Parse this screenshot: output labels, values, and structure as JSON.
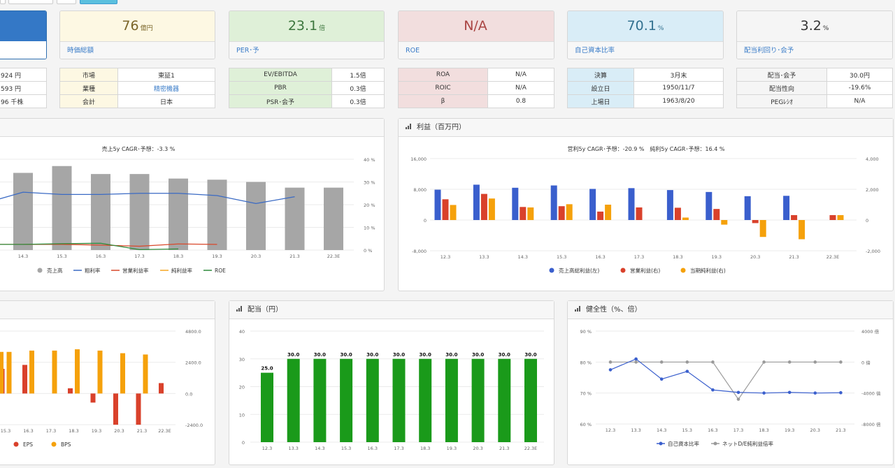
{
  "cards": [
    {
      "value": "76",
      "unit": "億円",
      "label": "時価総額"
    },
    {
      "value": "23.1",
      "unit": "倍",
      "label": "PER･予"
    },
    {
      "value": "N/A",
      "unit": "",
      "label": "ROE"
    },
    {
      "value": "70.1",
      "unit": "%",
      "label": "自己資本比率"
    },
    {
      "value": "3.2",
      "unit": "%",
      "label": "配当利回り･会予"
    }
  ],
  "left_partial_table": [
    "924 円",
    "593 円",
    "96 千株"
  ],
  "tables": [
    {
      "rows": [
        [
          "市場",
          "東証1"
        ],
        [
          "業種",
          "精密機器"
        ],
        [
          "会計",
          "日本"
        ]
      ]
    },
    {
      "rows": [
        [
          "EV/EBITDA",
          "1.5倍"
        ],
        [
          "PBR",
          "0.3倍"
        ],
        [
          "PSR･会予",
          "0.3倍"
        ]
      ]
    },
    {
      "rows": [
        [
          "ROA",
          "N/A"
        ],
        [
          "ROIC",
          "N/A"
        ],
        [
          "β",
          "0.8"
        ]
      ]
    },
    {
      "rows": [
        [
          "決算",
          "3月末"
        ],
        [
          "設立日",
          "1950/11/7"
        ],
        [
          "上場日",
          "1963/8/20"
        ]
      ]
    },
    {
      "rows": [
        [
          "配当･会予",
          "30.0円"
        ],
        [
          "配当性向",
          "-19.6%"
        ],
        [
          "PEGﾚｼｵ",
          "N/A"
        ]
      ]
    }
  ],
  "panels": {
    "profit_title": "利益（百万円）",
    "dividend_title": "配当（円）",
    "health_title": "健全性（%、倍）"
  },
  "chart_data": [
    {
      "type": "bar",
      "title": "売上5y CAGR･予想：-3.3 %",
      "categories": [
        "14.3",
        "15.3",
        "16.3",
        "17.3",
        "18.3",
        "19.3",
        "20.3",
        "21.3",
        "22.3E"
      ],
      "y2ticks": [
        "40 %",
        "30 %",
        "20 %",
        "10 %",
        "0 %"
      ],
      "y2lim": [
        0,
        40
      ],
      "series": [
        {
          "name": "売上高",
          "kind": "bar",
          "color": "#a6a6a6",
          "values": [
            34,
            37,
            33.5,
            33.5,
            31.5,
            31,
            30,
            27.5,
            27.5
          ]
        },
        {
          "name": "粗利率",
          "kind": "line",
          "color": "#3a6ac4",
          "values": [
            25.5,
            24.5,
            24.5,
            25,
            25,
            24,
            20.5,
            23.5,
            null
          ]
        },
        {
          "name": "営業利益率",
          "kind": "line",
          "color": "#d9482b",
          "values": [
            2.5,
            2.5,
            2.2,
            1.7,
            2.7,
            2.5,
            null,
            null,
            null
          ]
        },
        {
          "name": "純利益率",
          "kind": "line",
          "color": "#f5a623",
          "values": [
            null,
            null,
            null,
            null,
            null,
            null,
            null,
            null,
            null
          ]
        },
        {
          "name": "ROE",
          "kind": "line",
          "color": "#2e8b3a",
          "values": [
            2.5,
            2.8,
            3.0,
            0.2,
            0.5,
            null,
            null,
            null,
            null
          ]
        }
      ]
    },
    {
      "type": "bar",
      "title": "営利5y CAGR･予想：-20.9 %　純利5y CAGR･予想：16.4 %",
      "categories": [
        "12.3",
        "13.3",
        "14.3",
        "15.3",
        "16.3",
        "17.3",
        "18.3",
        "19.3",
        "20.3",
        "21.3",
        "22.3E"
      ],
      "yticks": [
        "16,000",
        "8,000",
        "0",
        "-8,000"
      ],
      "y2ticks": [
        "4,000",
        "2,000",
        "0",
        "-2,000"
      ],
      "series": [
        {
          "name": "売上高総利益(左)",
          "color": "#3a5fcd",
          "values": [
            7900,
            9200,
            8400,
            9000,
            8100,
            8300,
            7800,
            7300,
            6200,
            6300,
            null
          ]
        },
        {
          "name": "営業利益(右)",
          "color": "#d9412b",
          "values": [
            1350,
            1700,
            850,
            900,
            550,
            820,
            800,
            720,
            -200,
            320,
            320
          ]
        },
        {
          "name": "当期純利益(右)",
          "color": "#f5a10b",
          "values": [
            980,
            1400,
            820,
            1030,
            1000,
            null,
            160,
            -300,
            -1100,
            -1250,
            320
          ]
        }
      ]
    },
    {
      "type": "bar",
      "categories": [
        "15.3",
        "16.3",
        "17.3",
        "18.3",
        "19.3",
        "20.3",
        "21.3",
        "22.3E"
      ],
      "y2ticks": [
        "4800.0",
        "2400.0",
        "0.0",
        "-2400.0"
      ],
      "series": [
        {
          "name": "EPS",
          "color": "#d9412b",
          "values": [
            1900,
            2200,
            null,
            400,
            -700,
            -2400,
            -2400,
            800
          ]
        },
        {
          "name": "BPS",
          "color": "#f5a10b",
          "values": [
            3200,
            3300,
            3300,
            3400,
            3300,
            3100,
            3000,
            null
          ]
        }
      ]
    },
    {
      "type": "bar",
      "categories": [
        "12.3",
        "13.3",
        "14.3",
        "15.3",
        "16.3",
        "17.3",
        "18.3",
        "19.3",
        "20.3",
        "21.3",
        "22.3E"
      ],
      "yticks": [
        "40",
        "30",
        "20",
        "10",
        "0"
      ],
      "ylim": [
        0,
        40
      ],
      "series": [
        {
          "name": "配当",
          "color": "#1a9a1a",
          "values": [
            25.0,
            30.0,
            30.0,
            30.0,
            30.0,
            30.0,
            30.0,
            30.0,
            30.0,
            30.0,
            30.0
          ]
        }
      ]
    },
    {
      "type": "line",
      "categories": [
        "12.3",
        "13.3",
        "14.3",
        "15.3",
        "16.3",
        "17.3",
        "18.3",
        "19.3",
        "20.3",
        "21.3"
      ],
      "yticks": [
        "90 %",
        "80 %",
        "70 %",
        "60 %"
      ],
      "ylim": [
        60,
        90
      ],
      "y2ticks": [
        "4000 倍",
        "0 倍",
        "-4000 倍",
        "-8000 倍"
      ],
      "series": [
        {
          "name": "自己資本比率",
          "color": "#3a5fcd",
          "values": [
            77.5,
            81,
            74.5,
            77,
            71,
            70.2,
            70,
            70.2,
            70,
            70.1
          ]
        },
        {
          "name": "ネットD/E純利益倍率",
          "color": "#9a9a9a",
          "values": [
            0,
            0,
            0,
            0,
            0,
            -4800,
            0,
            0,
            0,
            0
          ]
        }
      ]
    }
  ]
}
